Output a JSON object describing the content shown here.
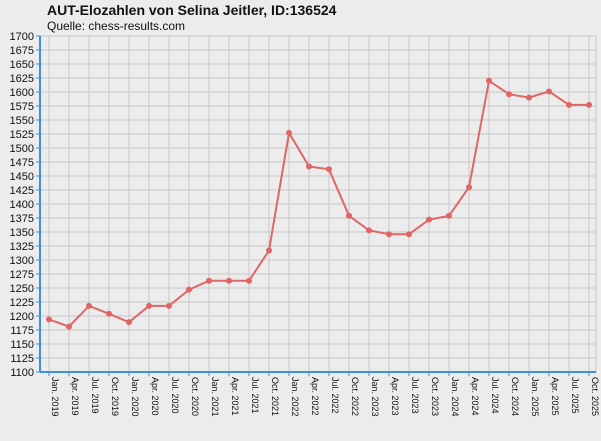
{
  "chart_data": {
    "type": "line",
    "title": "AUT-Elozahlen von Selina Jeitler, ID:136524",
    "subtitle": "Quelle: chess-results.com",
    "categories": [
      "Jan. 2019",
      "Apr. 2019",
      "Jul. 2019",
      "Oct. 2019",
      "Jan. 2020",
      "Apr. 2020",
      "Jul. 2020",
      "Oct. 2020",
      "Jan. 2021",
      "Apr. 2021",
      "Jul. 2021",
      "Oct. 2021",
      "Jan. 2022",
      "Apr. 2022",
      "Jul. 2022",
      "Oct. 2022",
      "Jan. 2023",
      "Apr. 2023",
      "Jul. 2023",
      "Oct. 2023",
      "Jan. 2024",
      "Apr. 2024",
      "Jul. 2024",
      "Oct. 2024",
      "Jan. 2025",
      "Apr. 2025",
      "Jul. 2025",
      "Oct. 2025"
    ],
    "series": [
      {
        "values": [
          1194,
          1181,
          1218,
          1204,
          1189,
          1218,
          1218,
          1247,
          1263,
          1263,
          1263,
          1317,
          1527,
          1467,
          1462,
          1379,
          1353,
          1346,
          1346,
          1372,
          1379,
          1430,
          1620,
          1596,
          1590,
          1601,
          1577,
          1577
        ]
      }
    ],
    "yticks": [
      1100,
      1125,
      1150,
      1175,
      1200,
      1225,
      1250,
      1275,
      1300,
      1325,
      1350,
      1375,
      1400,
      1425,
      1450,
      1475,
      1500,
      1525,
      1550,
      1575,
      1600,
      1625,
      1650,
      1675,
      1700
    ],
    "ylim": [
      1100,
      1700
    ],
    "grid": true,
    "line_color": "#e06666",
    "axis_color": "#3d8fe0"
  }
}
